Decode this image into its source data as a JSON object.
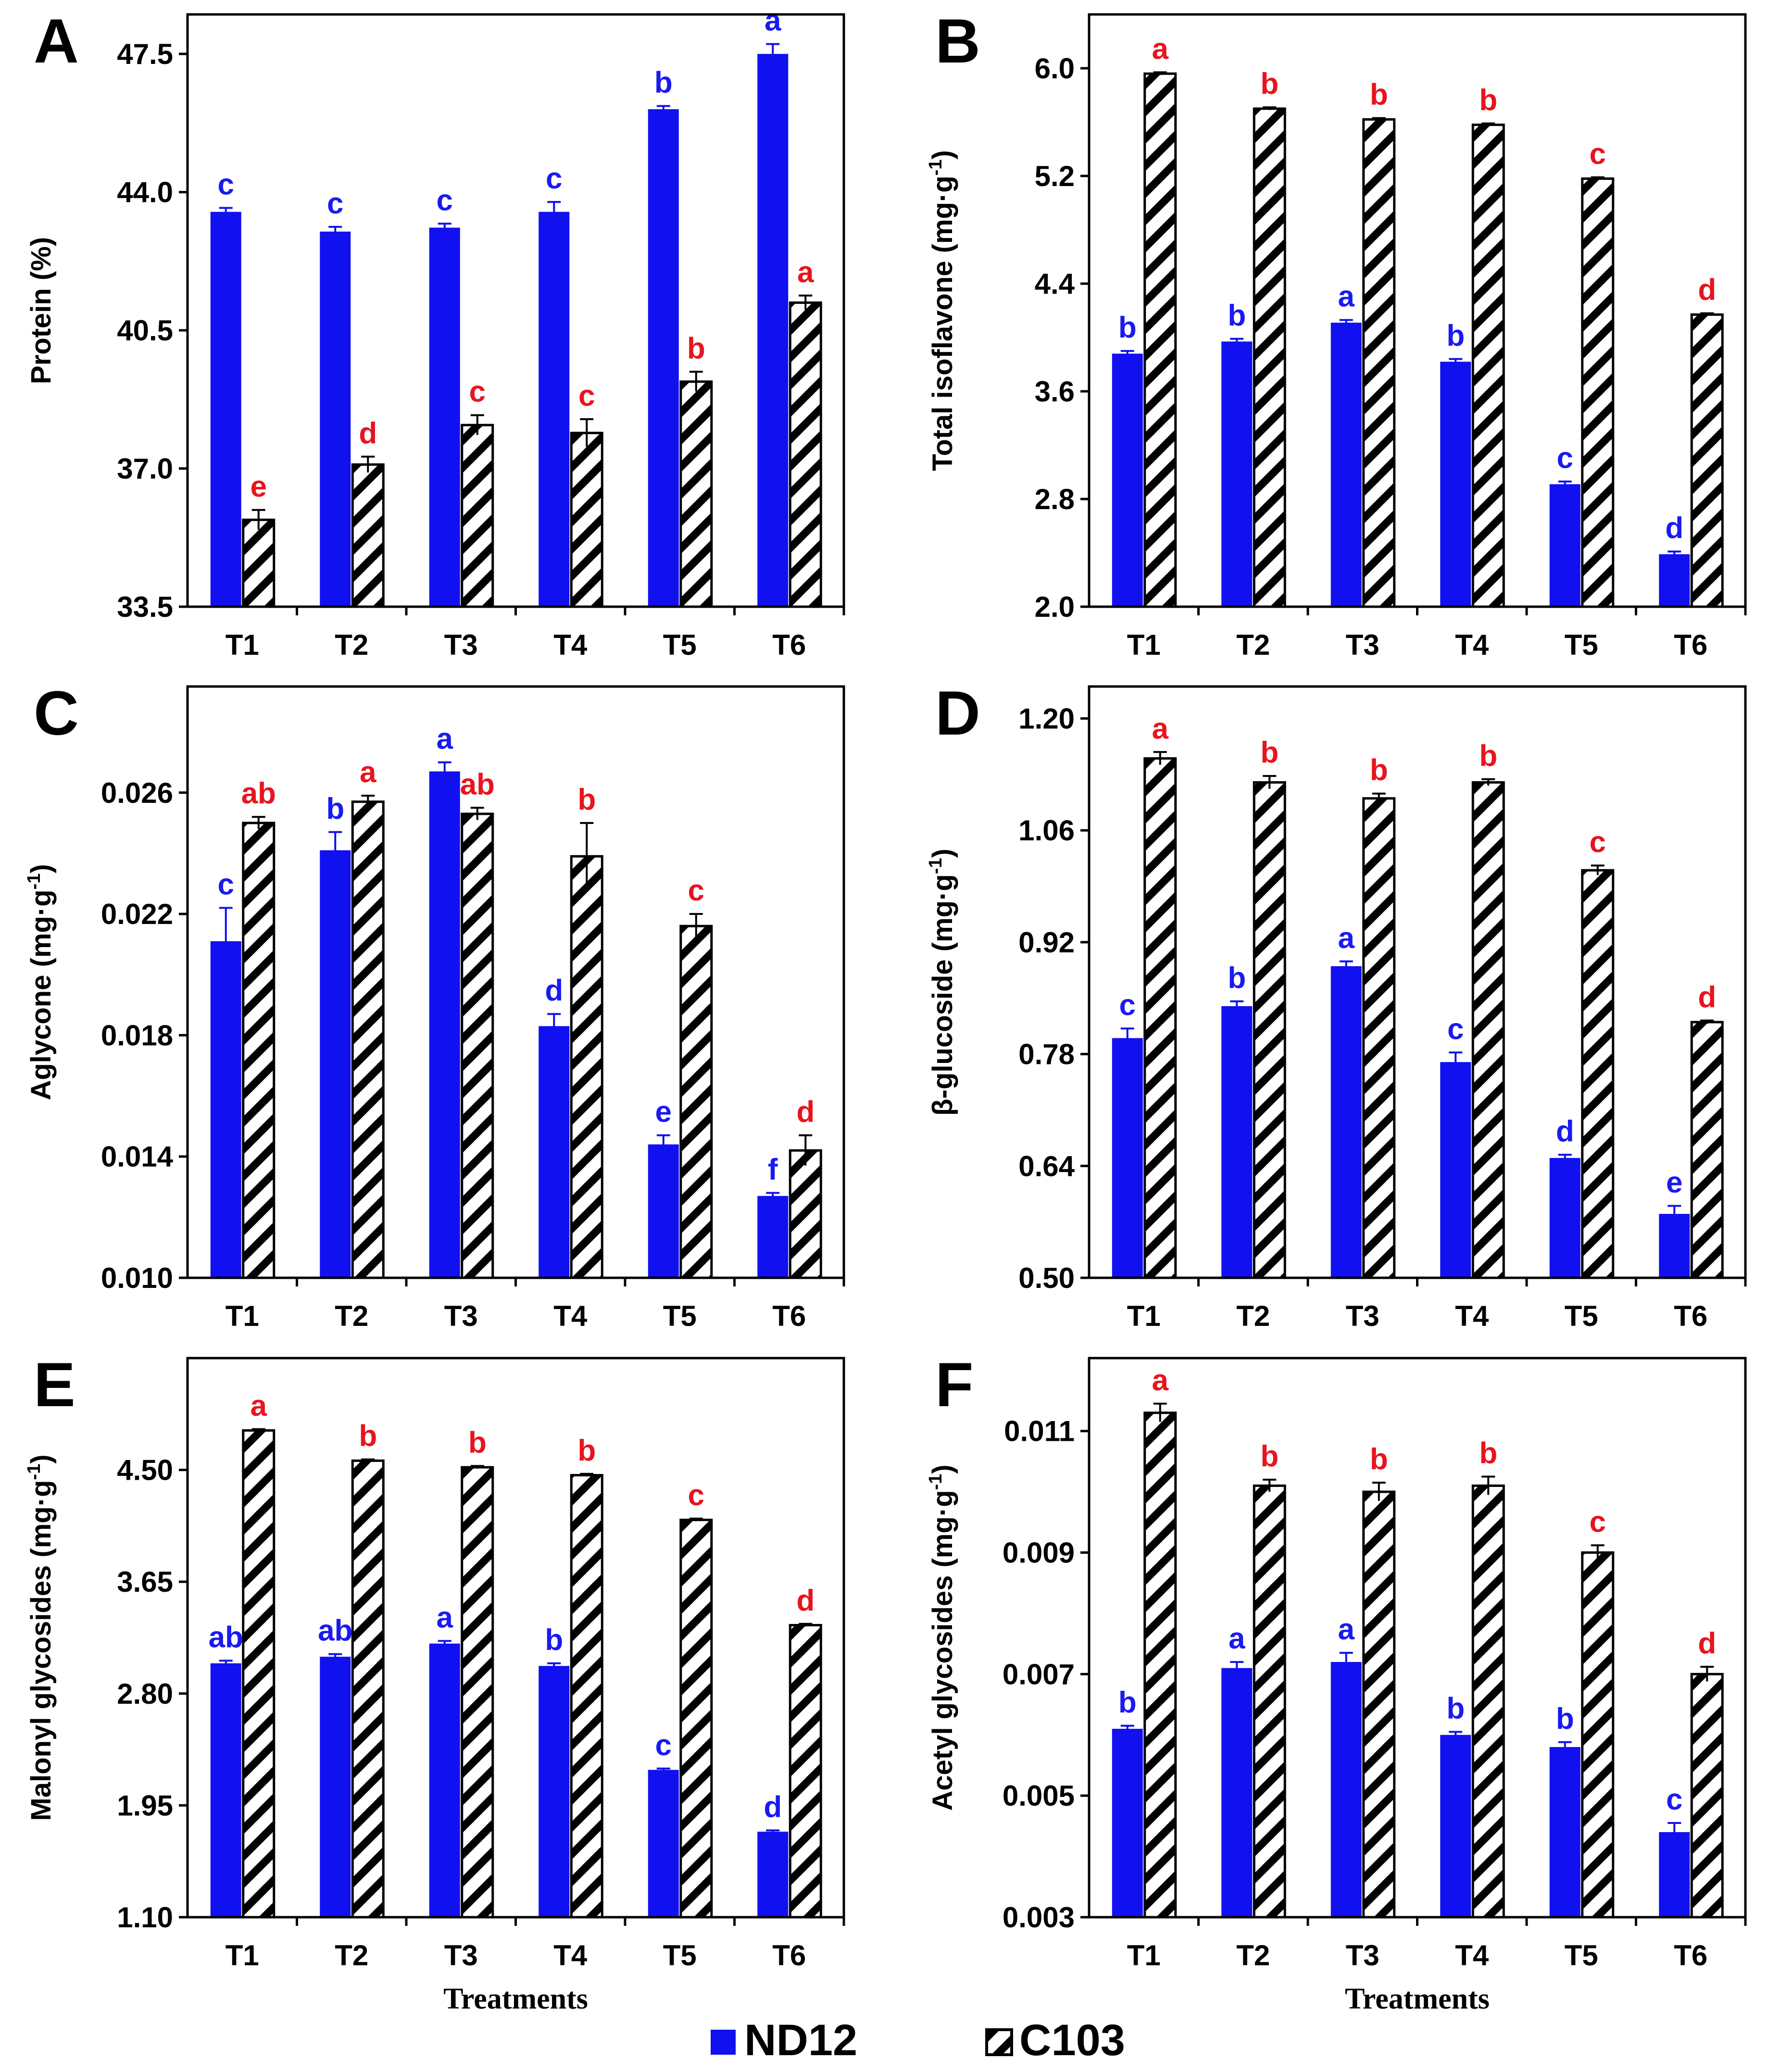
{
  "colors": {
    "nd12": "#1010f0",
    "c103_fill": "#ffffff",
    "c103_hatch": "#000000",
    "nd12_letter": "#1a1af0",
    "c103_letter": "#e8141e",
    "axis": "#000000"
  },
  "legend": {
    "nd12": "ND12",
    "c103": "C103"
  },
  "chart_data": [
    {
      "id": "A",
      "type": "bar",
      "panel_label": "A",
      "ylabel": "Protein (%)",
      "ylabel_sup": "",
      "xlabel": "",
      "categories": [
        "T1",
        "T2",
        "T3",
        "T4",
        "T5",
        "T6"
      ],
      "ylim": [
        33.5,
        48.5
      ],
      "yticks": [
        33.5,
        37.0,
        40.5,
        44.0,
        47.5
      ],
      "ytick_labels": [
        "33.5",
        "37.0",
        "40.5",
        "44.0",
        "47.5"
      ],
      "series": [
        {
          "name": "ND12",
          "values": [
            43.5,
            43.0,
            43.1,
            43.5,
            46.1,
            47.5
          ],
          "errors": [
            0.1,
            0.12,
            0.1,
            0.25,
            0.08,
            0.25
          ],
          "letters": [
            "c",
            "c",
            "c",
            "c",
            "b",
            "a"
          ]
        },
        {
          "name": "C103",
          "values": [
            35.7,
            37.1,
            38.1,
            37.9,
            39.2,
            41.2
          ],
          "errors": [
            0.25,
            0.2,
            0.25,
            0.35,
            0.25,
            0.18
          ],
          "letters": [
            "e",
            "d",
            "c",
            "c",
            "b",
            "a"
          ]
        }
      ]
    },
    {
      "id": "B",
      "type": "bar",
      "panel_label": "B",
      "ylabel": "Total  isoflavone (mg·g",
      "ylabel_sup": "-1",
      "ylabel_close": ")",
      "xlabel": "",
      "categories": [
        "T1",
        "T2",
        "T3",
        "T4",
        "T5",
        "T6"
      ],
      "ylim": [
        2.0,
        6.4
      ],
      "yticks": [
        2.0,
        2.8,
        3.6,
        4.4,
        5.2,
        6.0
      ],
      "ytick_labels": [
        "2.0",
        "2.8",
        "3.6",
        "4.4",
        "5.2",
        "6.0"
      ],
      "series": [
        {
          "name": "ND12",
          "values": [
            3.88,
            3.97,
            4.11,
            3.82,
            2.91,
            2.39
          ],
          "errors": [
            0.02,
            0.02,
            0.02,
            0.02,
            0.02,
            0.02
          ],
          "letters": [
            "b",
            "b",
            "a",
            "b",
            "c",
            "d"
          ]
        },
        {
          "name": "C103",
          "values": [
            5.96,
            5.7,
            5.62,
            5.58,
            5.18,
            4.17
          ],
          "errors": [
            0.01,
            0.01,
            0.01,
            0.01,
            0.01,
            0.01
          ],
          "letters": [
            "a",
            "b",
            "b",
            "b",
            "c",
            "d"
          ]
        }
      ]
    },
    {
      "id": "C",
      "type": "bar",
      "panel_label": "C",
      "ylabel": "Aglycone (mg·g",
      "ylabel_sup": "-1",
      "ylabel_close": ")",
      "xlabel": "",
      "categories": [
        "T1",
        "T2",
        "T3",
        "T4",
        "T5",
        "T6"
      ],
      "ylim": [
        0.01,
        0.0295
      ],
      "yticks": [
        0.01,
        0.014,
        0.018,
        0.022,
        0.026
      ],
      "ytick_labels": [
        "0.010",
        "0.014",
        "0.018",
        "0.022",
        "0.026"
      ],
      "series": [
        {
          "name": "ND12",
          "values": [
            0.0211,
            0.0241,
            0.0267,
            0.0183,
            0.0144,
            0.0127
          ],
          "errors": [
            0.0011,
            0.0006,
            0.0003,
            0.0004,
            0.0003,
            0.0001
          ],
          "letters": [
            "c",
            "b",
            "a",
            "d",
            "e",
            "f"
          ]
        },
        {
          "name": "C103",
          "values": [
            0.025,
            0.0257,
            0.0253,
            0.0239,
            0.0216,
            0.0142
          ],
          "errors": [
            0.0002,
            0.0002,
            0.0002,
            0.0011,
            0.0004,
            0.0005
          ],
          "letters": [
            "ab",
            "a",
            "ab",
            "b",
            "c",
            "d"
          ]
        }
      ]
    },
    {
      "id": "D",
      "type": "bar",
      "panel_label": "D",
      "ylabel": "β-glucoside (mg·g",
      "ylabel_sup": "-1",
      "ylabel_close": ")",
      "xlabel": "",
      "categories": [
        "T1",
        "T2",
        "T3",
        "T4",
        "T5",
        "T6"
      ],
      "ylim": [
        0.5,
        1.24
      ],
      "yticks": [
        0.5,
        0.64,
        0.78,
        0.92,
        1.06,
        1.2
      ],
      "ytick_labels": [
        "0.50",
        "0.64",
        "0.78",
        "0.92",
        "1.06",
        "1.20"
      ],
      "series": [
        {
          "name": "ND12",
          "values": [
            0.8,
            0.84,
            0.89,
            0.77,
            0.65,
            0.58
          ],
          "errors": [
            0.012,
            0.006,
            0.006,
            0.012,
            0.004,
            0.01
          ],
          "letters": [
            "c",
            "b",
            "a",
            "c",
            "d",
            "e"
          ]
        },
        {
          "name": "C103",
          "values": [
            1.15,
            1.12,
            1.1,
            1.12,
            1.01,
            0.82
          ],
          "errors": [
            0.008,
            0.008,
            0.006,
            0.004,
            0.006,
            0.002
          ],
          "letters": [
            "a",
            "b",
            "b",
            "b",
            "c",
            "d"
          ]
        }
      ]
    },
    {
      "id": "E",
      "type": "bar",
      "panel_label": "E",
      "ylabel": "Malonyl glycosides (mg·g",
      "ylabel_sup": "-1",
      "ylabel_close": ")",
      "xlabel": "Treatments",
      "categories": [
        "T1",
        "T2",
        "T3",
        "T4",
        "T5",
        "T6"
      ],
      "ylim": [
        1.1,
        5.35
      ],
      "yticks": [
        1.1,
        1.95,
        2.8,
        3.65,
        4.5
      ],
      "ytick_labels": [
        "1.10",
        "1.95",
        "2.80",
        "3.65",
        "4.50"
      ],
      "series": [
        {
          "name": "ND12",
          "values": [
            3.03,
            3.08,
            3.18,
            3.01,
            2.22,
            1.75
          ],
          "errors": [
            0.02,
            0.02,
            0.02,
            0.02,
            0.01,
            0.01
          ],
          "letters": [
            "ab",
            "ab",
            "a",
            "b",
            "c",
            "d"
          ]
        },
        {
          "name": "C103",
          "values": [
            4.8,
            4.57,
            4.52,
            4.46,
            4.12,
            3.32
          ],
          "errors": [
            0.01,
            0.01,
            0.01,
            0.01,
            0.01,
            0.01
          ],
          "letters": [
            "a",
            "b",
            "b",
            "b",
            "c",
            "d"
          ]
        }
      ]
    },
    {
      "id": "F",
      "type": "bar",
      "panel_label": "F",
      "ylabel": "Acetyl glycosides (mg·g",
      "ylabel_sup": "-1",
      "ylabel_close": ")",
      "xlabel": "Treatments",
      "categories": [
        "T1",
        "T2",
        "T3",
        "T4",
        "T5",
        "T6"
      ],
      "ylim": [
        0.003,
        0.0122
      ],
      "yticks": [
        0.003,
        0.005,
        0.007,
        0.009,
        0.011
      ],
      "ytick_labels": [
        "0.003",
        "0.005",
        "0.007",
        "0.009",
        "0.011"
      ],
      "series": [
        {
          "name": "ND12",
          "values": [
            0.0061,
            0.0071,
            0.0072,
            0.006,
            0.0058,
            0.0044
          ],
          "errors": [
            5e-05,
            0.0001,
            0.00015,
            5e-05,
            8e-05,
            0.00015
          ],
          "letters": [
            "b",
            "a",
            "a",
            "b",
            "b",
            "c"
          ]
        },
        {
          "name": "C103",
          "values": [
            0.0113,
            0.0101,
            0.01,
            0.0101,
            0.009,
            0.007
          ],
          "errors": [
            0.00015,
            0.0001,
            0.00015,
            0.00015,
            0.00012,
            0.00012
          ],
          "letters": [
            "a",
            "b",
            "b",
            "b",
            "c",
            "d"
          ]
        }
      ]
    }
  ]
}
